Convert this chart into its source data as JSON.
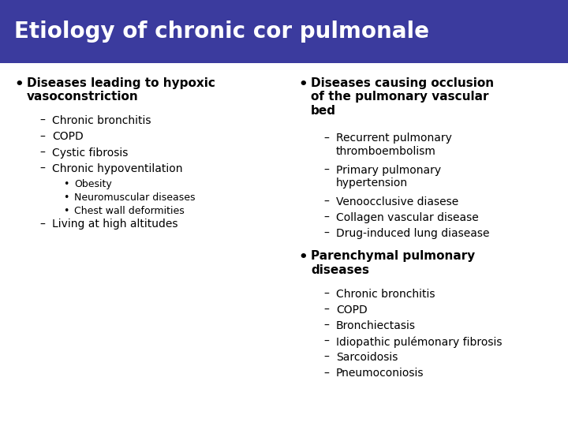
{
  "title": "Etiology of chronic cor pulmonale",
  "title_bg_color": "#3B3B9E",
  "title_text_color": "#FFFFFF",
  "bg_color": "#FFFFFF",
  "title_fontsize": 20,
  "bullet_fontsize": 11,
  "item_fontsize": 10,
  "sub_fontsize": 9,
  "left_col": {
    "bullet": "Diseases leading to hypoxic\nvasoconstriction",
    "items": [
      {
        "level": 1,
        "text": "Chronic bronchitis"
      },
      {
        "level": 1,
        "text": "COPD"
      },
      {
        "level": 1,
        "text": "Cystic fibrosis"
      },
      {
        "level": 1,
        "text": "Chronic hypoventilation"
      },
      {
        "level": 2,
        "text": "Obesity"
      },
      {
        "level": 2,
        "text": "Neuromuscular diseases"
      },
      {
        "level": 2,
        "text": "Chest wall deformities"
      },
      {
        "level": 1,
        "text": "Living at high altitudes"
      }
    ]
  },
  "right_col": {
    "sections": [
      {
        "bullet": "Diseases causing occlusion\nof the pulmonary vascular\nbed",
        "items": [
          {
            "level": 1,
            "text": "Recurrent pulmonary\nthromboembolism"
          },
          {
            "level": 1,
            "text": "Primary pulmonary\nhypertension"
          },
          {
            "level": 1,
            "text": "Venoocclusive diasese"
          },
          {
            "level": 1,
            "text": "Collagen vascular disease"
          },
          {
            "level": 1,
            "text": "Drug-induced lung diasease"
          }
        ]
      },
      {
        "bullet": "Parenchymal pulmonary\ndiseases",
        "items": [
          {
            "level": 1,
            "text": "Chronic bronchitis"
          },
          {
            "level": 1,
            "text": "COPD"
          },
          {
            "level": 1,
            "text": "Bronchiectasis"
          },
          {
            "level": 1,
            "text": "Idiopathic pulémonary fibrosis"
          },
          {
            "level": 1,
            "text": "Sarcoidosis"
          },
          {
            "level": 1,
            "text": "Pneumoconiosis"
          }
        ]
      }
    ]
  }
}
